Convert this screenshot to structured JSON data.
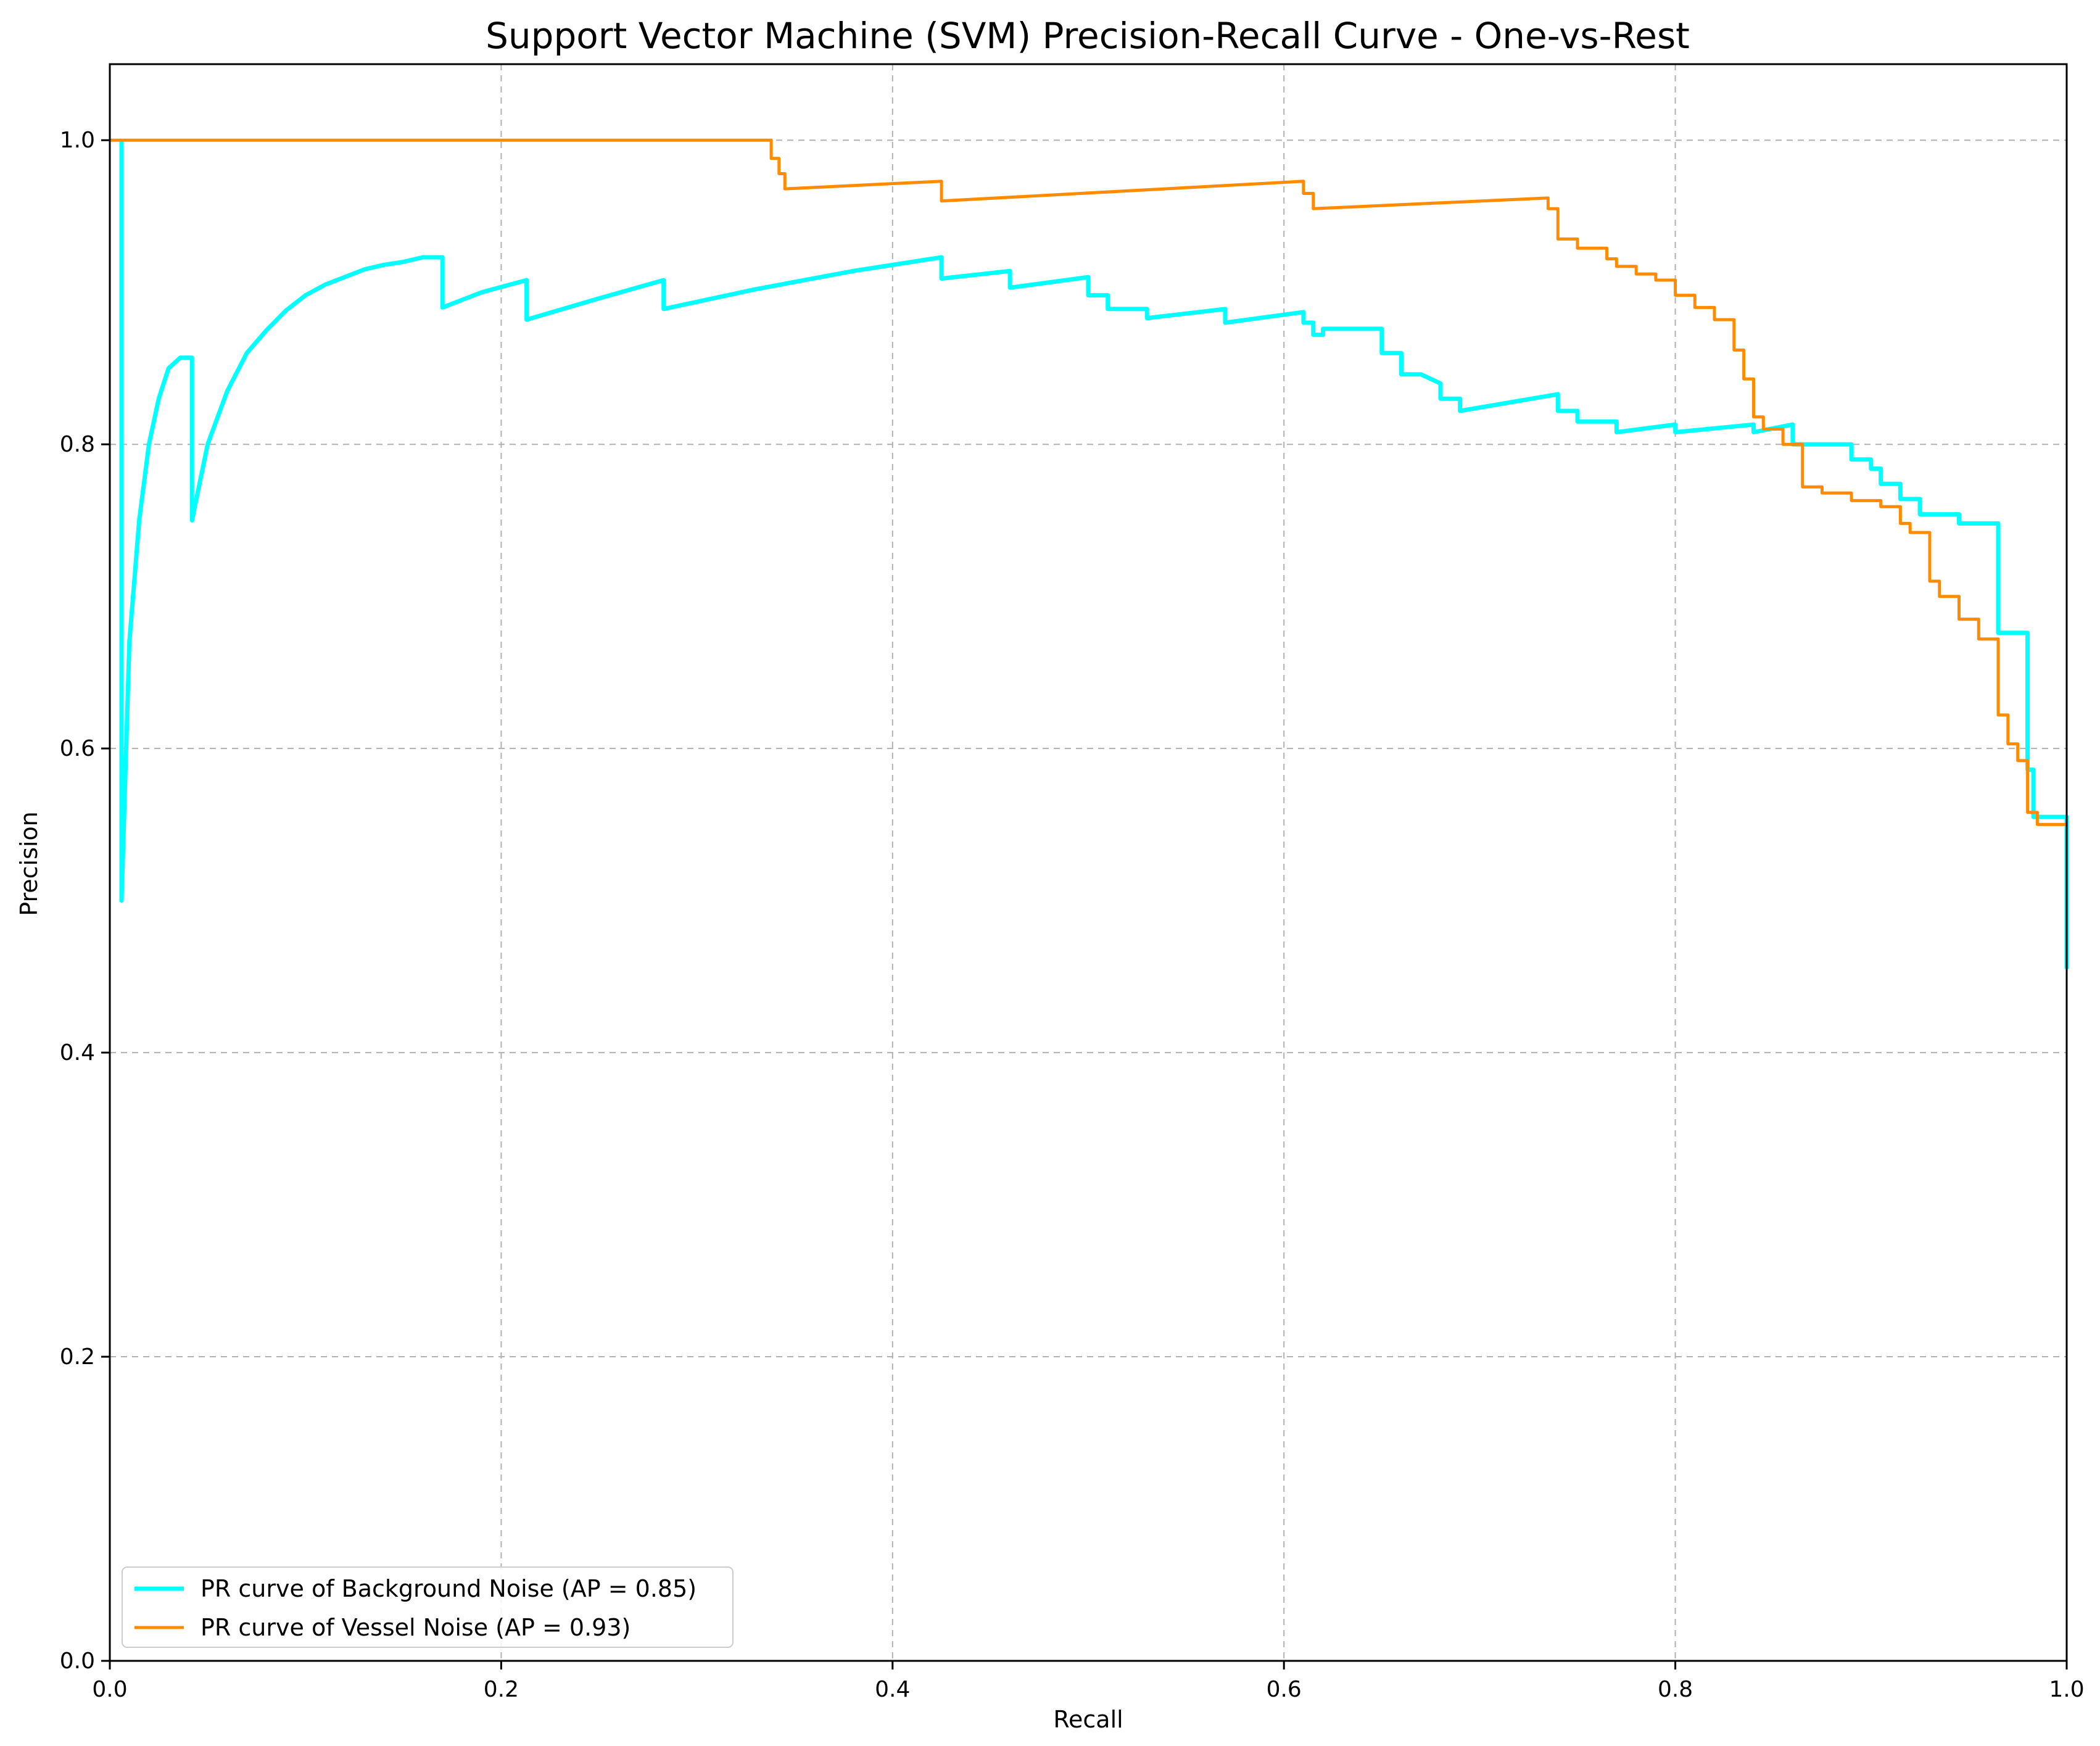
{
  "chart_data": {
    "type": "line",
    "title": "Support Vector Machine (SVM) Precision-Recall Curve - One-vs-Rest",
    "xlabel": "Recall",
    "ylabel": "Precision",
    "xlim": [
      0.0,
      1.0
    ],
    "ylim": [
      0.0,
      1.05
    ],
    "x_ticks": [
      "0.0",
      "0.2",
      "0.4",
      "0.6",
      "0.8",
      "1.0"
    ],
    "y_ticks": [
      "0.0",
      "0.2",
      "0.4",
      "0.6",
      "0.8",
      "1.0"
    ],
    "grid": true,
    "legend_position": "lower-left",
    "series": [
      {
        "name": "PR curve of Background Noise (AP = 0.85)",
        "color": "#00ffff",
        "x": [
          0.006,
          0.006,
          0.006,
          0.01,
          0.015,
          0.02,
          0.025,
          0.03,
          0.036,
          0.042,
          0.042,
          0.05,
          0.06,
          0.07,
          0.08,
          0.09,
          0.1,
          0.11,
          0.12,
          0.13,
          0.14,
          0.15,
          0.16,
          0.17,
          0.17,
          0.19,
          0.213,
          0.213,
          0.25,
          0.283,
          0.283,
          0.33,
          0.38,
          0.425,
          0.425,
          0.46,
          0.46,
          0.5,
          0.5,
          0.51,
          0.51,
          0.53,
          0.53,
          0.57,
          0.57,
          0.61,
          0.61,
          0.615,
          0.615,
          0.62,
          0.62,
          0.65,
          0.65,
          0.66,
          0.66,
          0.66,
          0.67,
          0.68,
          0.68,
          0.69,
          0.69,
          0.74,
          0.74,
          0.75,
          0.75,
          0.76,
          0.76,
          0.77,
          0.77,
          0.8,
          0.8,
          0.84,
          0.84,
          0.86,
          0.86,
          0.875,
          0.875,
          0.89,
          0.89,
          0.9,
          0.9,
          0.905,
          0.905,
          0.915,
          0.915,
          0.925,
          0.925,
          0.945,
          0.945,
          0.955,
          0.955,
          0.965,
          0.965,
          0.975,
          0.975,
          0.98,
          0.98,
          0.983,
          0.983,
          0.99,
          0.99,
          1.0,
          1.0
        ],
        "y": [
          1.0,
          0.5,
          0.5,
          0.67,
          0.75,
          0.8,
          0.83,
          0.85,
          0.857,
          0.857,
          0.75,
          0.8,
          0.835,
          0.86,
          0.875,
          0.888,
          0.898,
          0.905,
          0.91,
          0.915,
          0.918,
          0.92,
          0.923,
          0.923,
          0.89,
          0.9,
          0.908,
          0.882,
          0.896,
          0.908,
          0.889,
          0.902,
          0.914,
          0.923,
          0.909,
          0.914,
          0.903,
          0.91,
          0.898,
          0.898,
          0.889,
          0.889,
          0.883,
          0.889,
          0.88,
          0.887,
          0.88,
          0.88,
          0.872,
          0.872,
          0.876,
          0.876,
          0.86,
          0.86,
          0.846,
          0.846,
          0.846,
          0.84,
          0.83,
          0.83,
          0.822,
          0.833,
          0.822,
          0.822,
          0.815,
          0.815,
          0.815,
          0.815,
          0.808,
          0.813,
          0.808,
          0.813,
          0.808,
          0.813,
          0.8,
          0.8,
          0.8,
          0.8,
          0.79,
          0.79,
          0.784,
          0.784,
          0.774,
          0.774,
          0.764,
          0.764,
          0.754,
          0.754,
          0.748,
          0.748,
          0.748,
          0.748,
          0.676,
          0.676,
          0.676,
          0.676,
          0.586,
          0.586,
          0.555,
          0.555,
          0.555,
          0.555,
          0.455
        ]
      },
      {
        "name": "PR curve of Vessel Noise (AP = 0.93)",
        "color": "#ff8c00",
        "x": [
          0.0,
          0.338,
          0.338,
          0.342,
          0.342,
          0.345,
          0.345,
          0.425,
          0.425,
          0.61,
          0.61,
          0.615,
          0.615,
          0.735,
          0.735,
          0.74,
          0.74,
          0.75,
          0.75,
          0.76,
          0.76,
          0.765,
          0.765,
          0.77,
          0.77,
          0.78,
          0.78,
          0.79,
          0.79,
          0.8,
          0.8,
          0.81,
          0.81,
          0.82,
          0.82,
          0.83,
          0.83,
          0.835,
          0.835,
          0.84,
          0.84,
          0.845,
          0.845,
          0.855,
          0.855,
          0.865,
          0.865,
          0.875,
          0.875,
          0.89,
          0.89,
          0.905,
          0.905,
          0.915,
          0.915,
          0.92,
          0.92,
          0.93,
          0.93,
          0.935,
          0.935,
          0.945,
          0.945,
          0.955,
          0.955,
          0.965,
          0.965,
          0.97,
          0.97,
          0.975,
          0.975,
          0.98,
          0.98,
          0.985,
          0.985,
          0.99,
          0.99,
          1.0
        ],
        "y": [
          1.0,
          1.0,
          0.988,
          0.988,
          0.978,
          0.978,
          0.968,
          0.973,
          0.96,
          0.973,
          0.965,
          0.965,
          0.955,
          0.962,
          0.955,
          0.955,
          0.935,
          0.935,
          0.929,
          0.929,
          0.929,
          0.929,
          0.922,
          0.922,
          0.917,
          0.917,
          0.912,
          0.912,
          0.908,
          0.908,
          0.898,
          0.898,
          0.89,
          0.89,
          0.882,
          0.882,
          0.862,
          0.862,
          0.843,
          0.843,
          0.818,
          0.818,
          0.81,
          0.81,
          0.8,
          0.8,
          0.772,
          0.772,
          0.768,
          0.768,
          0.763,
          0.763,
          0.759,
          0.759,
          0.748,
          0.748,
          0.742,
          0.742,
          0.71,
          0.71,
          0.7,
          0.7,
          0.685,
          0.685,
          0.672,
          0.672,
          0.622,
          0.622,
          0.603,
          0.603,
          0.592,
          0.592,
          0.558,
          0.558,
          0.55,
          0.55,
          0.55,
          0.55
        ]
      }
    ]
  }
}
